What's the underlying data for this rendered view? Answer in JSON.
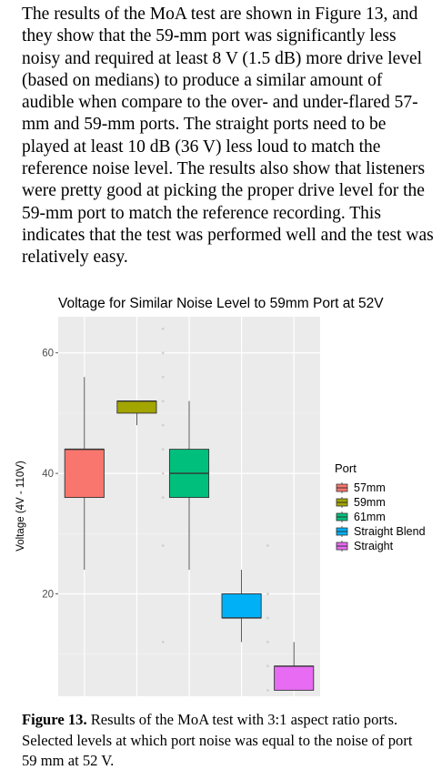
{
  "paragraph": "The results of the MoA test are shown in Figure 13, and they show that the 59-mm port was significantly less noisy and required at least 8 V (1.5 dB) more drive level (based on medians) to produce a similar amount of audible when compare to the over- and under-flared 57-mm and 59-mm ports. The straight ports need to be played at least 10 dB (36 V) less loud to match the reference noise level. The results also show that listeners were pretty good at picking the proper drive level for the 59-mm port to match the reference recording. This indicates that the test was performed well and the test was relatively easy.",
  "caption": {
    "label": "Figure 13.",
    "text": " Results of the MoA test with 3:1 aspect ratio ports. Selected levels at which port noise was equal to the noise of port 59 mm at 52 V."
  },
  "chart_data": {
    "type": "box",
    "title": "Voltage for Similar Noise Level to 59mm Port at 52V",
    "xlabel": "",
    "ylabel": "Voltage (4V - 110V)",
    "ylim": [
      3,
      66
    ],
    "yticks": [
      20,
      40,
      60
    ],
    "grid": true,
    "legend_title": "Port",
    "legend_position": "right",
    "series": [
      {
        "name": "57mm",
        "color": "#F8766D",
        "whisker_low": 24,
        "q1": 36,
        "median": 44,
        "q3": 44,
        "whisker_high": 56,
        "outliers": []
      },
      {
        "name": "59mm",
        "color": "#A3A500",
        "whisker_low": 48,
        "q1": 50,
        "median": 52,
        "q3": 52,
        "whisker_high": 52,
        "outliers": []
      },
      {
        "name": "61mm",
        "color": "#00BF7D",
        "whisker_low": 24,
        "q1": 36,
        "median": 40,
        "q3": 44,
        "whisker_high": 52,
        "outliers": []
      },
      {
        "name": "Straight Blend",
        "color": "#00B0F6",
        "whisker_low": 12,
        "q1": 16,
        "median": 16,
        "q3": 20,
        "whisker_high": 24,
        "outliers": []
      },
      {
        "name": "Straight",
        "color": "#E76BF3",
        "whisker_low": 4,
        "q1": 4,
        "median": 8,
        "q3": 8,
        "whisker_high": 12,
        "outliers": []
      }
    ],
    "jitter_points": [
      {
        "x": 2.5,
        "y": 12
      },
      {
        "x": 2.5,
        "y": 28
      },
      {
        "x": 2.5,
        "y": 36
      },
      {
        "x": 2.5,
        "y": 40
      },
      {
        "x": 2.5,
        "y": 44
      },
      {
        "x": 2.5,
        "y": 48
      },
      {
        "x": 2.5,
        "y": 52
      },
      {
        "x": 2.5,
        "y": 56
      },
      {
        "x": 2.5,
        "y": 60
      },
      {
        "x": 2.5,
        "y": 64
      },
      {
        "x": 4.5,
        "y": 4
      },
      {
        "x": 4.5,
        "y": 8
      },
      {
        "x": 4.5,
        "y": 12
      },
      {
        "x": 4.5,
        "y": 16
      },
      {
        "x": 4.5,
        "y": 20
      },
      {
        "x": 4.5,
        "y": 28
      }
    ]
  }
}
